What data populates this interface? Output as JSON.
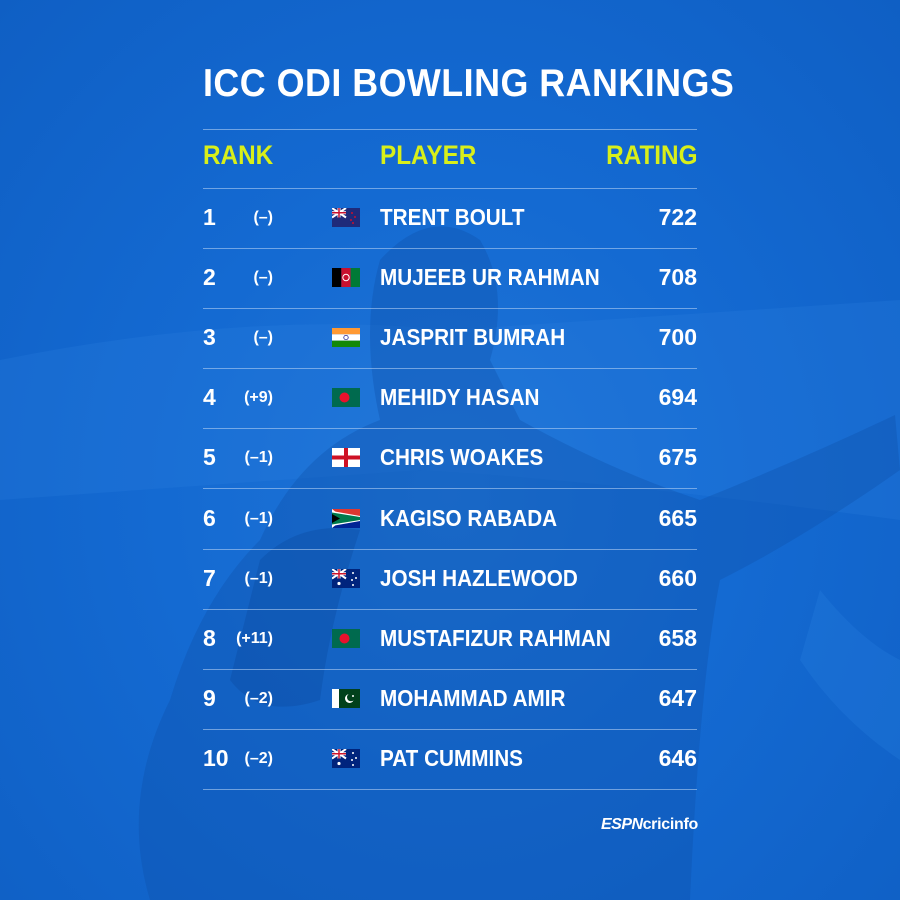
{
  "title": "ICC ODI BOWLING RANKINGS",
  "headers": {
    "rank": "RANK",
    "player": "PLAYER",
    "rating": "RATING"
  },
  "rows": [
    {
      "rank": "1",
      "change": "(–)",
      "flag": "new-zealand-flag",
      "player": "TRENT BOULT",
      "rating": "722"
    },
    {
      "rank": "2",
      "change": "(–)",
      "flag": "afghanistan-flag",
      "player": "MUJEEB UR RAHMAN",
      "rating": "708"
    },
    {
      "rank": "3",
      "change": "(–)",
      "flag": "india-flag",
      "player": "JASPRIT BUMRAH",
      "rating": "700"
    },
    {
      "rank": "4",
      "change": "(+9)",
      "flag": "bangladesh-flag",
      "player": "MEHIDY HASAN",
      "rating": "694"
    },
    {
      "rank": "5",
      "change": "(–1)",
      "flag": "england-flag",
      "player": "CHRIS WOAKES",
      "rating": "675"
    },
    {
      "rank": "6",
      "change": "(–1)",
      "flag": "south-africa-flag",
      "player": "KAGISO RABADA",
      "rating": "665"
    },
    {
      "rank": "7",
      "change": "(–1)",
      "flag": "australia-flag",
      "player": "JOSH HAZLEWOOD",
      "rating": "660"
    },
    {
      "rank": "8",
      "change": "(+11)",
      "flag": "bangladesh-flag",
      "player": "MUSTAFIZUR RAHMAN",
      "rating": "658"
    },
    {
      "rank": "9",
      "change": "(–2)",
      "flag": "pakistan-flag",
      "player": "MOHAMMAD AMIR",
      "rating": "647"
    },
    {
      "rank": "10",
      "change": "(–2)",
      "flag": "australia-flag",
      "player": "PAT CUMMINS",
      "rating": "646"
    }
  ],
  "logo": {
    "part1": "ESPN",
    "part2": "cricinfo"
  },
  "colors": {
    "background": "#146ad2",
    "header_accent": "#d8ef1a",
    "text": "#ffffff"
  }
}
